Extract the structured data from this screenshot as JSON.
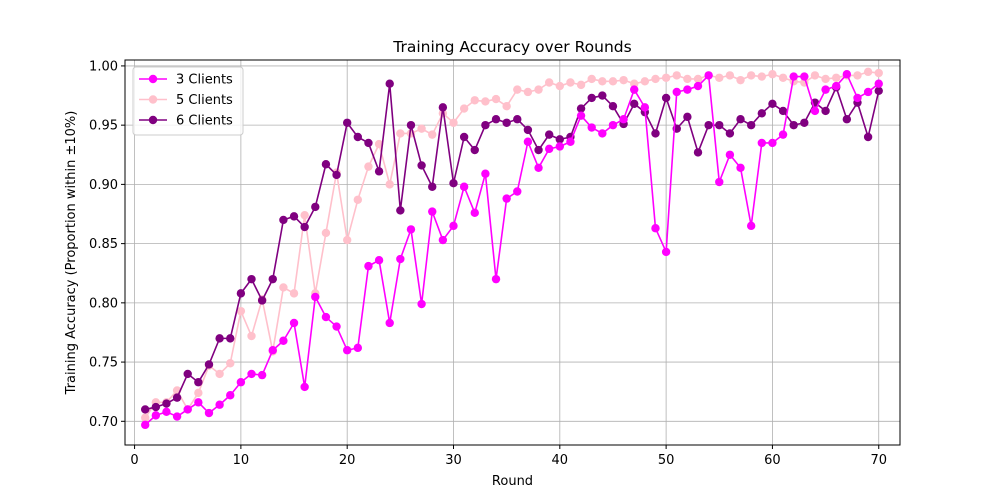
{
  "chart_data": {
    "type": "line",
    "title": "Training Accuracy over Rounds",
    "xlabel": "Round",
    "ylabel": "Training Accuracy (Proportion within ±10%)",
    "xlim": [
      -0.9,
      72.0
    ],
    "ylim": [
      0.68,
      1.005
    ],
    "xticks": [
      0,
      10,
      20,
      30,
      40,
      50,
      60,
      70
    ],
    "yticks": [
      0.7,
      0.75,
      0.8,
      0.85,
      0.9,
      0.95,
      1.0
    ],
    "grid": true,
    "legend_position": "top-left",
    "x": [
      1,
      2,
      3,
      4,
      5,
      6,
      7,
      8,
      9,
      10,
      11,
      12,
      13,
      14,
      15,
      16,
      17,
      18,
      19,
      20,
      21,
      22,
      23,
      24,
      25,
      26,
      27,
      28,
      29,
      30,
      31,
      32,
      33,
      34,
      35,
      36,
      37,
      38,
      39,
      40,
      41,
      42,
      43,
      44,
      45,
      46,
      47,
      48,
      49,
      50,
      51,
      52,
      53,
      54,
      55,
      56,
      57,
      58,
      59,
      60,
      61,
      62,
      63,
      64,
      65,
      66,
      67,
      68,
      69,
      70
    ],
    "series": [
      {
        "name": "3 Clients",
        "color": "#ff00ff",
        "values": [
          0.697,
          0.705,
          0.708,
          0.704,
          0.71,
          0.716,
          0.707,
          0.714,
          0.722,
          0.733,
          0.74,
          0.739,
          0.76,
          0.768,
          0.783,
          0.729,
          0.805,
          0.788,
          0.78,
          0.76,
          0.762,
          0.831,
          0.836,
          0.783,
          0.837,
          0.862,
          0.799,
          0.877,
          0.853,
          0.865,
          0.898,
          0.876,
          0.909,
          0.82,
          0.888,
          0.894,
          0.936,
          0.914,
          0.93,
          0.932,
          0.936,
          0.958,
          0.948,
          0.943,
          0.95,
          0.955,
          0.98,
          0.965,
          0.863,
          0.843,
          0.978,
          0.98,
          0.983,
          0.992,
          0.902,
          0.925,
          0.914,
          0.865,
          0.935,
          0.935,
          0.942,
          0.991,
          0.991,
          0.962,
          0.98,
          0.983,
          0.993,
          0.973,
          0.978,
          0.985
        ]
      },
      {
        "name": "5 Clients",
        "color": "#ffc0cb",
        "values": [
          0.703,
          0.716,
          0.716,
          0.726,
          0.71,
          0.724,
          0.747,
          0.74,
          0.749,
          0.793,
          0.772,
          0.803,
          0.759,
          0.813,
          0.808,
          0.874,
          0.808,
          0.859,
          0.91,
          0.853,
          0.887,
          0.915,
          0.934,
          0.9,
          0.943,
          0.943,
          0.947,
          0.942,
          0.96,
          0.952,
          0.964,
          0.971,
          0.97,
          0.972,
          0.966,
          0.98,
          0.978,
          0.98,
          0.986,
          0.983,
          0.986,
          0.984,
          0.989,
          0.987,
          0.987,
          0.988,
          0.985,
          0.987,
          0.989,
          0.99,
          0.992,
          0.989,
          0.989,
          0.992,
          0.99,
          0.992,
          0.988,
          0.992,
          0.991,
          0.993,
          0.99,
          0.987,
          0.986,
          0.992,
          0.989,
          0.99,
          0.992,
          0.992,
          0.995,
          0.994
        ]
      },
      {
        "name": "6 Clients",
        "color": "#800080",
        "values": [
          0.71,
          0.712,
          0.715,
          0.72,
          0.74,
          0.733,
          0.748,
          0.77,
          0.77,
          0.808,
          0.82,
          0.802,
          0.82,
          0.87,
          0.873,
          0.864,
          0.881,
          0.917,
          0.908,
          0.952,
          0.94,
          0.935,
          0.911,
          0.985,
          0.878,
          0.95,
          0.916,
          0.898,
          0.965,
          0.901,
          0.94,
          0.929,
          0.95,
          0.955,
          0.952,
          0.955,
          0.946,
          0.929,
          0.942,
          0.938,
          0.94,
          0.964,
          0.973,
          0.975,
          0.966,
          0.951,
          0.968,
          0.961,
          0.943,
          0.973,
          0.947,
          0.957,
          0.927,
          0.95,
          0.95,
          0.943,
          0.955,
          0.95,
          0.96,
          0.968,
          0.962,
          0.95,
          0.952,
          0.969,
          0.962,
          0.982,
          0.955,
          0.969,
          0.94,
          0.979
        ]
      }
    ]
  }
}
